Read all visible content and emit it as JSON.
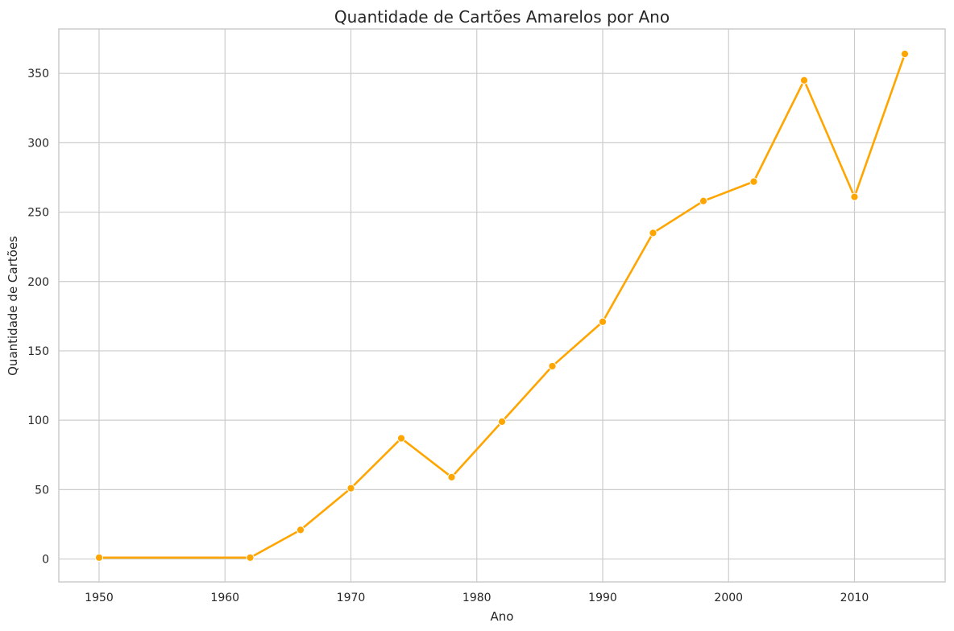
{
  "chart_data": {
    "type": "line",
    "title": "Quantidade de Cartões Amarelos por Ano",
    "xlabel": "Ano",
    "ylabel": "Quantidade de Cartões",
    "xlim": [
      1946.8,
      2017.2
    ],
    "ylim": [
      -16.5,
      382
    ],
    "xticks": [
      1950,
      1960,
      1970,
      1980,
      1990,
      2000,
      2010
    ],
    "yticks": [
      0,
      50,
      100,
      150,
      200,
      250,
      300,
      350
    ],
    "grid": true,
    "legend": "none",
    "line_color": "#ffa500",
    "series": [
      {
        "x": [
          1950,
          1962,
          1966,
          1970,
          1974,
          1978,
          1982,
          1986,
          1990,
          1994,
          1998,
          2002,
          2006,
          2010,
          2014
        ],
        "y": [
          1,
          1,
          21,
          51,
          87,
          59,
          99,
          139,
          171,
          235,
          258,
          272,
          345,
          261,
          364
        ]
      }
    ]
  }
}
